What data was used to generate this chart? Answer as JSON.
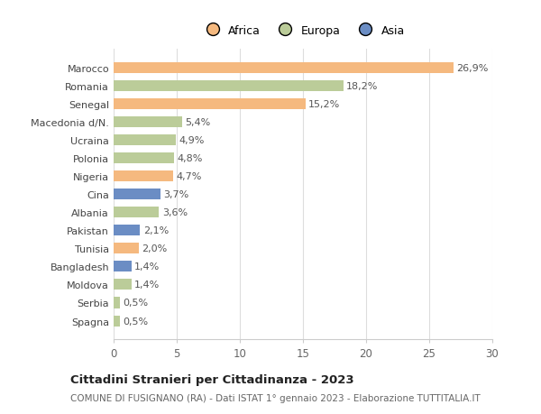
{
  "countries": [
    "Marocco",
    "Romania",
    "Senegal",
    "Macedonia d/N.",
    "Ucraina",
    "Polonia",
    "Nigeria",
    "Cina",
    "Albania",
    "Pakistan",
    "Tunisia",
    "Bangladesh",
    "Moldova",
    "Serbia",
    "Spagna"
  ],
  "values": [
    26.9,
    18.2,
    15.2,
    5.4,
    4.9,
    4.8,
    4.7,
    3.7,
    3.6,
    2.1,
    2.0,
    1.4,
    1.4,
    0.5,
    0.5
  ],
  "labels": [
    "26,9%",
    "18,2%",
    "15,2%",
    "5,4%",
    "4,9%",
    "4,8%",
    "4,7%",
    "3,7%",
    "3,6%",
    "2,1%",
    "2,0%",
    "1,4%",
    "1,4%",
    "0,5%",
    "0,5%"
  ],
  "continents": [
    "Africa",
    "Europa",
    "Africa",
    "Europa",
    "Europa",
    "Europa",
    "Africa",
    "Asia",
    "Europa",
    "Asia",
    "Africa",
    "Asia",
    "Europa",
    "Europa",
    "Europa"
  ],
  "colors": {
    "Africa": "#F5B97F",
    "Europa": "#BBCC99",
    "Asia": "#6B8DC4"
  },
  "title": "Cittadini Stranieri per Cittadinanza - 2023",
  "subtitle": "COMUNE DI FUSIGNANO (RA) - Dati ISTAT 1° gennaio 2023 - Elaborazione TUTTITALIA.IT",
  "xlim": [
    0,
    30
  ],
  "xticks": [
    0,
    5,
    10,
    15,
    20,
    25,
    30
  ],
  "background_color": "#ffffff",
  "grid_color": "#dddddd",
  "label_fontsize": 8.0,
  "ytick_fontsize": 8.0,
  "xtick_fontsize": 8.5,
  "bar_height": 0.6
}
